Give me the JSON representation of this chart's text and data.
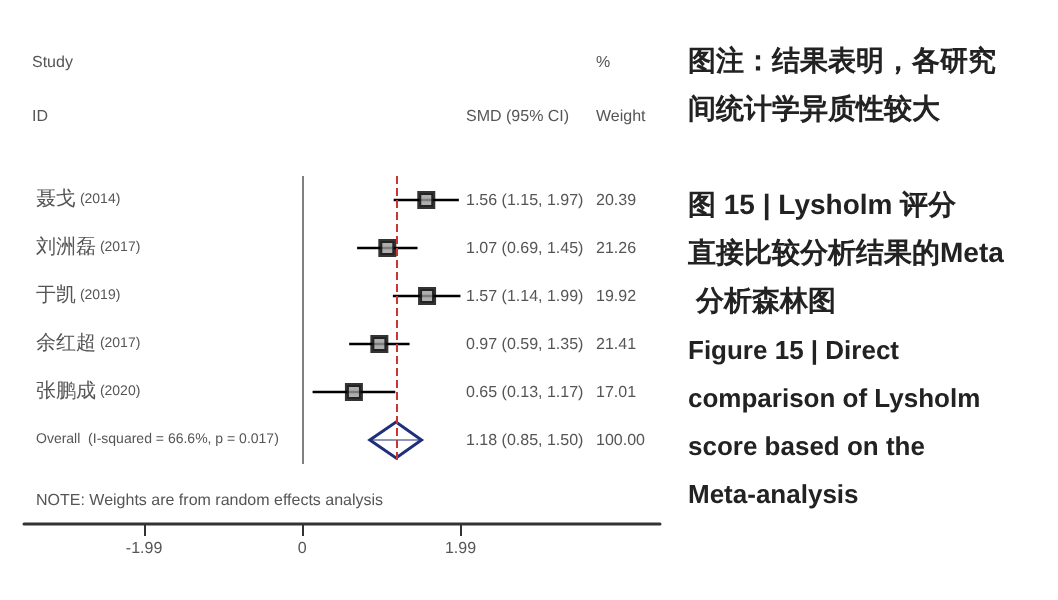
{
  "chart_data": {
    "type": "scatter",
    "orientation": "horizontal",
    "categories": [
      "聂戈 (2014)",
      "刘洲磊 (2017)",
      "于凯 (2019)",
      "余红超 (2017)",
      "张鹏成 (2020)",
      "Overall  (I-squared = 66.6%, p = 0.017)"
    ],
    "xlim": [
      -3.5,
      4.5
    ],
    "xticks": [
      -1.99,
      0,
      1.99
    ],
    "grid": false,
    "series": [
      {
        "marker": "square",
        "color": "#000000",
        "values": [
          1.56,
          1.07,
          1.57,
          0.97,
          0.65,
          null
        ],
        "errors": [
          [
            1.15,
            1.97
          ],
          [
            0.69,
            1.45
          ],
          [
            1.14,
            1.99
          ],
          [
            0.59,
            1.35
          ],
          [
            0.13,
            1.17
          ],
          null
        ]
      },
      {
        "marker": "diamond",
        "color": "#1f2f7a",
        "values": [
          null,
          null,
          null,
          null,
          null,
          1.18
        ],
        "errors": [
          null,
          null,
          null,
          null,
          null,
          [
            0.85,
            1.5
          ]
        ]
      }
    ],
    "ref_lines": [
      {
        "axis": "x",
        "value": 0,
        "color": "#808080",
        "line_style": "solid"
      },
      {
        "axis": "x",
        "value": 1.18,
        "color": "#cc3333",
        "line_style": "dashed"
      }
    ],
    "annotations": [
      "Study",
      "ID",
      "SMD (95% CI)",
      "%",
      "Weight",
      "NOTE: Weights are from random effects analysis",
      "图注：结果表明，各研究间统计学异质性较大",
      "图 15 | Lysholm 评分直接比较分析结果的Meta 分析森林图",
      "Figure 15 | Direct comparison of Lysholm score based on the Meta-analysis",
      "1.56 (1.15, 1.97)",
      "1.07 (0.69, 1.45)",
      "1.57 (1.14, 1.99)",
      "0.97 (0.59, 1.35)",
      "0.65 (0.13, 1.17)",
      "1.18 (0.85, 1.50)",
      "20.39",
      "21.26",
      "19.92",
      "21.41",
      "17.01",
      "100.00"
    ]
  }
}
